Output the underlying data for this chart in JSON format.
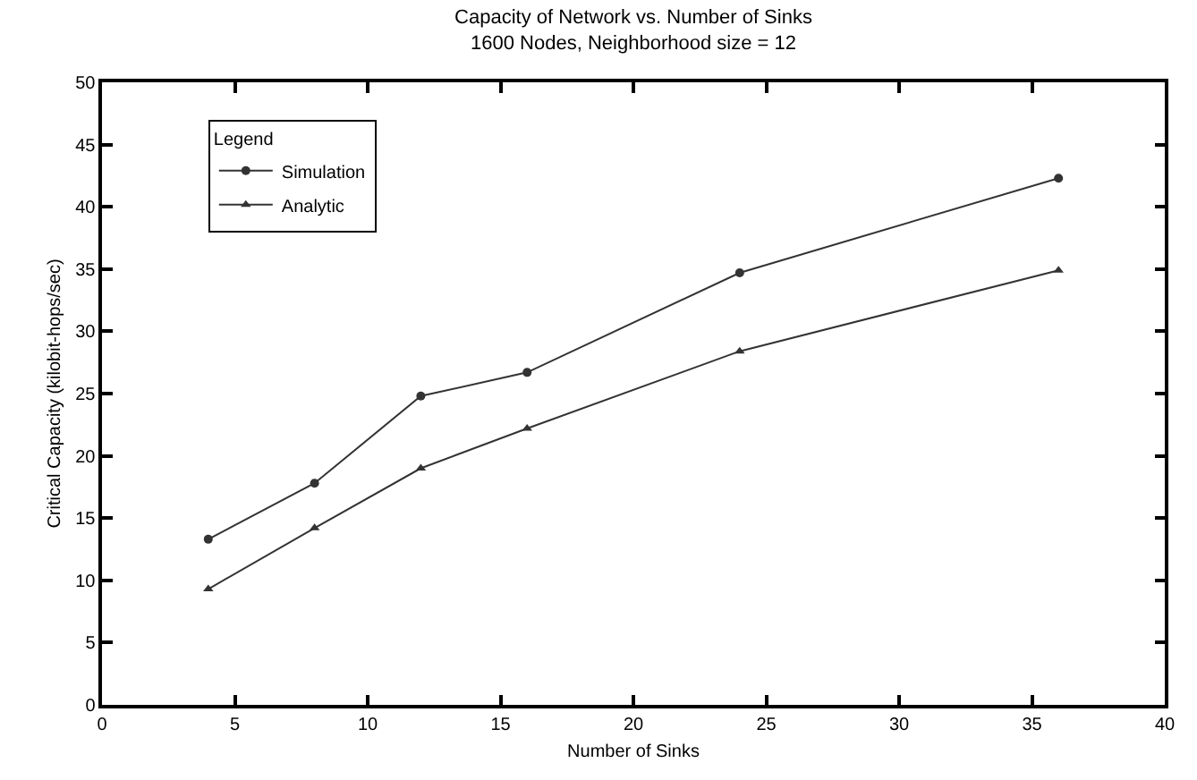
{
  "chart_data": {
    "type": "line",
    "title": "Capacity of Network vs. Number of Sinks",
    "subtitle": "1600 Nodes, Neighborhood size = 12",
    "xlabel": "Number of Sinks",
    "ylabel": "Critical Capacity (kilobit-hops/sec)",
    "legend_title": "Legend",
    "x": [
      4,
      8,
      12,
      16,
      24,
      36
    ],
    "series": [
      {
        "name": "Simulation",
        "color": "#333333",
        "marker": "circle",
        "values": [
          13.3,
          17.8,
          24.8,
          26.7,
          34.7,
          42.3
        ]
      },
      {
        "name": "Analytic",
        "color": "#333333",
        "marker": "triangle",
        "values": [
          9.3,
          14.2,
          19.0,
          22.2,
          28.4,
          34.9
        ]
      }
    ],
    "xlim": [
      0,
      40
    ],
    "ylim": [
      0,
      50
    ],
    "xticks": [
      0,
      5,
      10,
      15,
      20,
      25,
      30,
      35,
      40
    ],
    "yticks": [
      0,
      5,
      10,
      15,
      20,
      25,
      30,
      35,
      40,
      45,
      50
    ],
    "legend": "top left",
    "line_style": "solid"
  }
}
